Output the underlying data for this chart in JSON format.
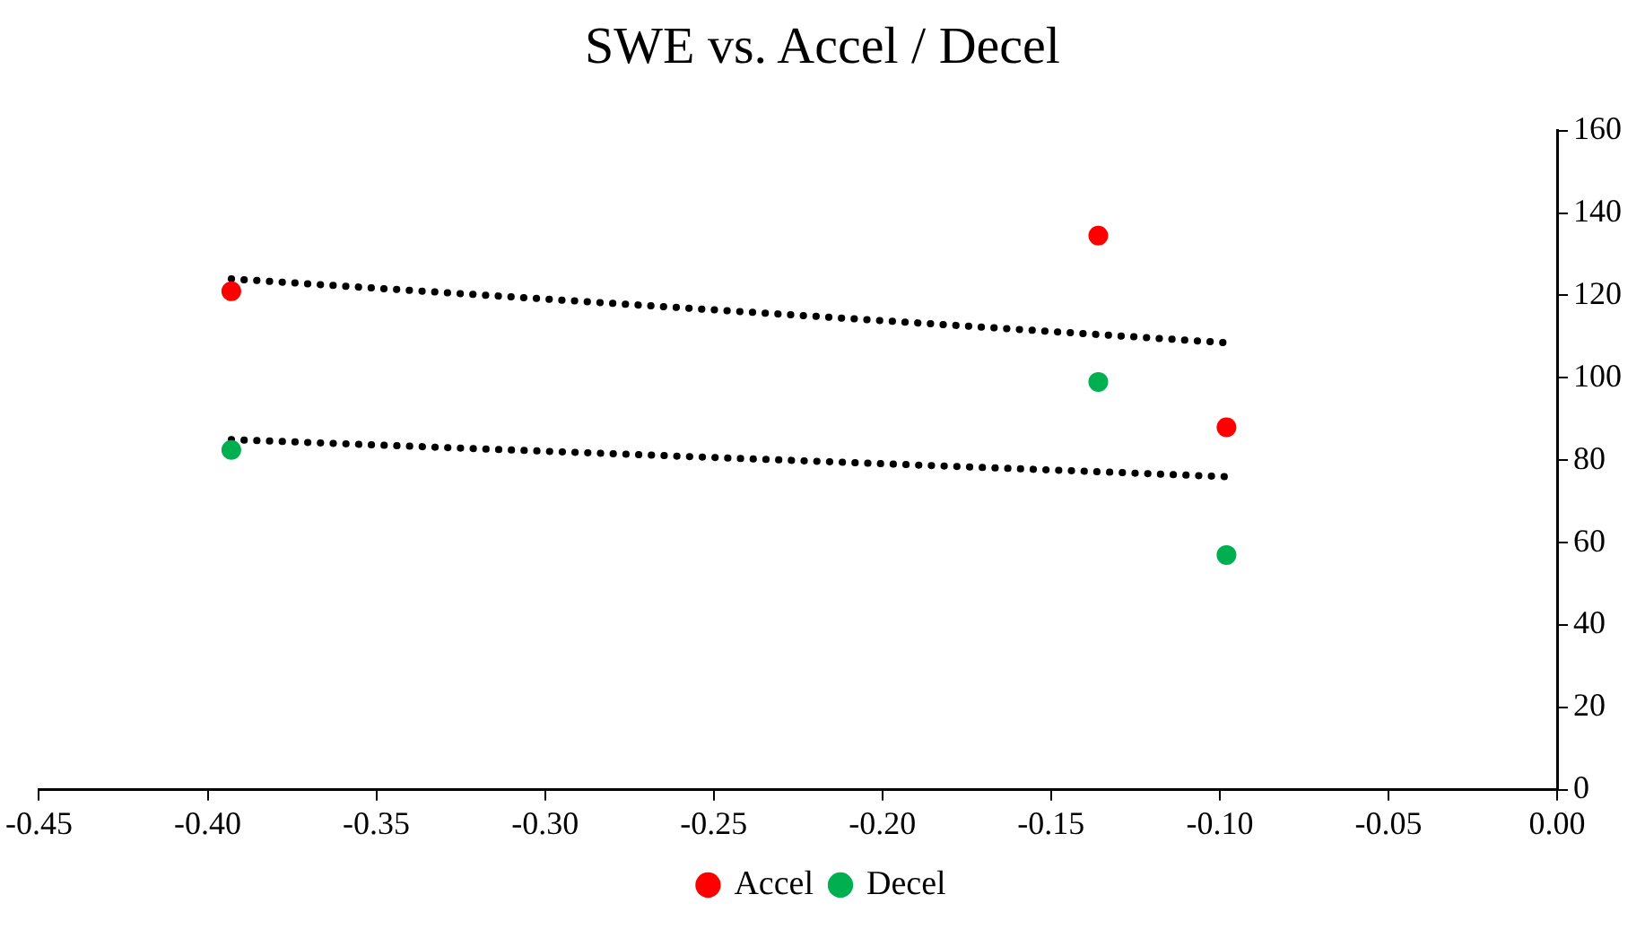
{
  "chart_data": {
    "type": "scatter",
    "title": "SWE vs. Accel / Decel",
    "x": [
      -0.393,
      -0.136,
      -0.098
    ],
    "series": [
      {
        "name": "Accel",
        "color": "#ff0000",
        "values": [
          121,
          134.5,
          88
        ]
      },
      {
        "name": "Decel",
        "color": "#00b050",
        "values": [
          82.5,
          99,
          57
        ]
      },
      {
        "type": "line",
        "color": "#000000",
        "line_style": "dotted",
        "marker": "none",
        "values": [
          124,
          110.5,
          108.5
        ]
      },
      {
        "type": "line",
        "color": "#000000",
        "line_style": "dotted",
        "marker": "none",
        "values": [
          85,
          77.2,
          76
        ]
      }
    ],
    "xlim": [
      -0.45,
      0
    ],
    "xticks": [
      {
        "value": -0.45,
        "label": "-0.45"
      },
      {
        "value": -0.4,
        "label": "-0.40"
      },
      {
        "value": -0.35,
        "label": "-0.35"
      },
      {
        "value": -0.3,
        "label": "-0.30"
      },
      {
        "value": -0.25,
        "label": "-0.25"
      },
      {
        "value": -0.2,
        "label": "-0.20"
      },
      {
        "value": -0.15,
        "label": "-0.15"
      },
      {
        "value": -0.1,
        "label": "-0.10"
      },
      {
        "value": -0.05,
        "label": "-0.05"
      },
      {
        "value": 0,
        "label": "0.00"
      }
    ],
    "ylim": [
      0,
      160
    ],
    "yticks": [
      0,
      20,
      40,
      60,
      80,
      100,
      120,
      140,
      160
    ],
    "marker": "circle",
    "grid": false,
    "legend": "bottom"
  }
}
